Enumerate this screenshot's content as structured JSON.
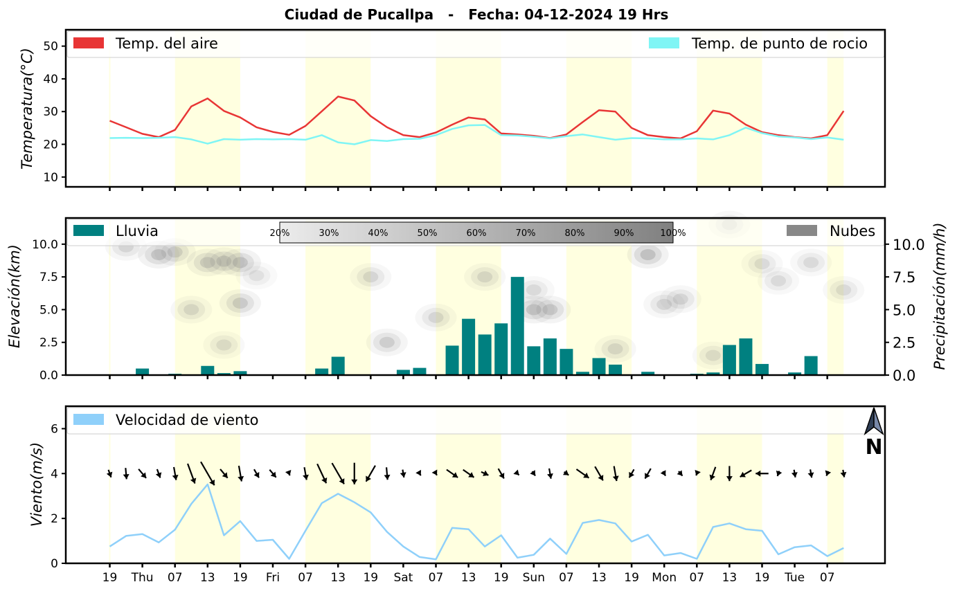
{
  "title": "Ciudad de Pucallpa   -   Fecha: 04-12-2024 19 Hrs",
  "chart_data": [
    {
      "type": "line",
      "panel": "temperature",
      "ylabel": "Temperatura(°C)",
      "ylim": [
        7,
        55
      ],
      "yticks": [
        "10",
        "20",
        "30",
        "40",
        "50"
      ],
      "legend_left": "Temp. del aire",
      "legend_right": "Temp. de punto de rocio",
      "colors": {
        "air": "#e83535",
        "dew": "#7ff5f5",
        "day_band": "#ffffe0"
      },
      "series": [
        {
          "name": "Temp. del aire",
          "values": [
            27.2,
            25.2,
            23.2,
            22.2,
            24.4,
            31.6,
            34.0,
            30.2,
            28.2,
            25.2,
            23.8,
            22.9,
            25.6,
            30.1,
            34.6,
            33.4,
            28.6,
            25.2,
            22.8,
            22.2,
            23.6,
            26.0,
            28.2,
            27.6,
            23.3,
            23.0,
            22.6,
            21.9,
            23.0,
            26.8,
            30.4,
            30.0,
            25.0,
            22.8,
            22.2,
            21.8,
            24.0,
            30.3,
            29.4,
            26.0,
            23.7,
            22.8,
            22.2,
            21.8,
            22.8,
            30.2
          ]
        },
        {
          "name": "Temp. de punto de rocio",
          "values": [
            21.9,
            22.0,
            21.9,
            22.0,
            22.2,
            21.5,
            20.2,
            21.6,
            21.4,
            21.6,
            21.5,
            21.6,
            21.4,
            22.8,
            20.6,
            20.0,
            21.3,
            21.0,
            21.6,
            21.7,
            22.8,
            24.7,
            25.8,
            25.9,
            22.8,
            22.7,
            22.3,
            21.8,
            22.5,
            23.0,
            22.2,
            21.4,
            21.9,
            21.8,
            21.5,
            21.5,
            21.8,
            21.5,
            22.8,
            25.1,
            23.4,
            22.4,
            22.1,
            21.6,
            22.1,
            21.4
          ]
        }
      ]
    },
    {
      "type": "bar",
      "panel": "rain_clouds",
      "ylabel_left": "Elevación(km)",
      "ylabel_right": "Precipitación(mm/h)",
      "ylim": [
        0,
        12
      ],
      "yticks": [
        "0.0",
        "2.5",
        "5.0",
        "7.5",
        "10.0"
      ],
      "legend_left": "Lluvia",
      "legend_right": "Nubes",
      "colorbar_labels": [
        "20%",
        "30%",
        "40%",
        "50%",
        "60%",
        "70%",
        "80%",
        "90%",
        "100%"
      ],
      "colors": {
        "rain": "#008080",
        "clouds": "#888888"
      },
      "series": [
        {
          "name": "Lluvia",
          "values": [
            0.0,
            0.03,
            0.5,
            0.05,
            0.1,
            0.05,
            0.7,
            0.15,
            0.3,
            0.03,
            0.05,
            0.05,
            0.05,
            0.5,
            1.4,
            0.05,
            0.03,
            0.03,
            0.4,
            0.55,
            0.05,
            2.25,
            4.3,
            3.1,
            3.95,
            7.5,
            2.2,
            2.8,
            2.0,
            0.25,
            1.3,
            0.8,
            0.05,
            0.25,
            0.03,
            0.05,
            0.1,
            0.2,
            2.3,
            2.8,
            0.85,
            0.03,
            0.2,
            1.45,
            0.03,
            0.0
          ]
        }
      ],
      "clouds": [
        {
          "x": 1,
          "y": 9.8,
          "opacity": 0.35
        },
        {
          "x": 3,
          "y": 9.2,
          "opacity": 0.5
        },
        {
          "x": 4,
          "y": 9.4,
          "opacity": 0.4
        },
        {
          "x": 5,
          "y": 5.0,
          "opacity": 0.35
        },
        {
          "x": 6,
          "y": 8.6,
          "opacity": 0.45
        },
        {
          "x": 7,
          "y": 8.7,
          "opacity": 0.45
        },
        {
          "x": 7,
          "y": 2.3,
          "opacity": 0.3
        },
        {
          "x": 8,
          "y": 8.6,
          "opacity": 0.5
        },
        {
          "x": 8,
          "y": 5.5,
          "opacity": 0.45
        },
        {
          "x": 9,
          "y": 7.6,
          "opacity": 0.25
        },
        {
          "x": 17,
          "y": 2.5,
          "opacity": 0.4
        },
        {
          "x": 16,
          "y": 7.5,
          "opacity": 0.35
        },
        {
          "x": 20,
          "y": 4.4,
          "opacity": 0.35
        },
        {
          "x": 23,
          "y": 7.5,
          "opacity": 0.35
        },
        {
          "x": 26,
          "y": 5.0,
          "opacity": 0.5
        },
        {
          "x": 27,
          "y": 5.0,
          "opacity": 0.45
        },
        {
          "x": 26,
          "y": 6.5,
          "opacity": 0.3
        },
        {
          "x": 31,
          "y": 2.0,
          "opacity": 0.35
        },
        {
          "x": 33,
          "y": 9.2,
          "opacity": 0.55
        },
        {
          "x": 34,
          "y": 5.4,
          "opacity": 0.35
        },
        {
          "x": 35,
          "y": 5.8,
          "opacity": 0.35
        },
        {
          "x": 37,
          "y": 1.5,
          "opacity": 0.3
        },
        {
          "x": 38,
          "y": 11.5,
          "opacity": 0.3
        },
        {
          "x": 40,
          "y": 8.5,
          "opacity": 0.3
        },
        {
          "x": 41,
          "y": 7.2,
          "opacity": 0.3
        },
        {
          "x": 43,
          "y": 8.6,
          "opacity": 0.3
        },
        {
          "x": 45,
          "y": 6.5,
          "opacity": 0.3
        }
      ]
    },
    {
      "type": "line",
      "panel": "wind",
      "ylabel": "Viento(m/s)",
      "ylim": [
        0,
        7
      ],
      "yticks": [
        "0",
        "2",
        "4",
        "6"
      ],
      "legend_left": "Velocidad de viento",
      "north_label": "N",
      "colors": {
        "wind": "#8fd0fa",
        "arrows": "#000000"
      },
      "series": [
        {
          "name": "Velocidad de viento",
          "values": [
            0.75,
            1.22,
            1.3,
            0.93,
            1.5,
            2.65,
            3.52,
            1.25,
            1.88,
            1.0,
            1.05,
            0.2,
            1.45,
            2.68,
            3.1,
            2.72,
            2.27,
            1.4,
            0.75,
            0.28,
            0.18,
            1.58,
            1.52,
            0.75,
            1.25,
            0.25,
            0.38,
            1.1,
            0.42,
            1.8,
            1.93,
            1.78,
            0.97,
            1.27,
            0.35,
            0.46,
            0.2,
            1.62,
            1.78,
            1.52,
            1.45,
            0.4,
            0.72,
            0.8,
            0.32,
            0.68
          ]
        }
      ],
      "wind_direction_deg": [
        160,
        175,
        140,
        160,
        170,
        160,
        150,
        140,
        170,
        150,
        140,
        160,
        170,
        155,
        150,
        180,
        210,
        175,
        170,
        150,
        150,
        125,
        125,
        115,
        150,
        135,
        145,
        170,
        125,
        125,
        150,
        170,
        210,
        210,
        150,
        140,
        200,
        200,
        180,
        240,
        270,
        200,
        170,
        170,
        200,
        170
      ]
    }
  ],
  "x_axis": {
    "tick_labels": [
      "19",
      "Thu",
      "07",
      "13",
      "19",
      "Fri",
      "07",
      "13",
      "19",
      "Sat",
      "07",
      "13",
      "19",
      "Sun",
      "07",
      "13",
      "19",
      "Mon",
      "07",
      "13",
      "19",
      "Tue",
      "07"
    ]
  }
}
